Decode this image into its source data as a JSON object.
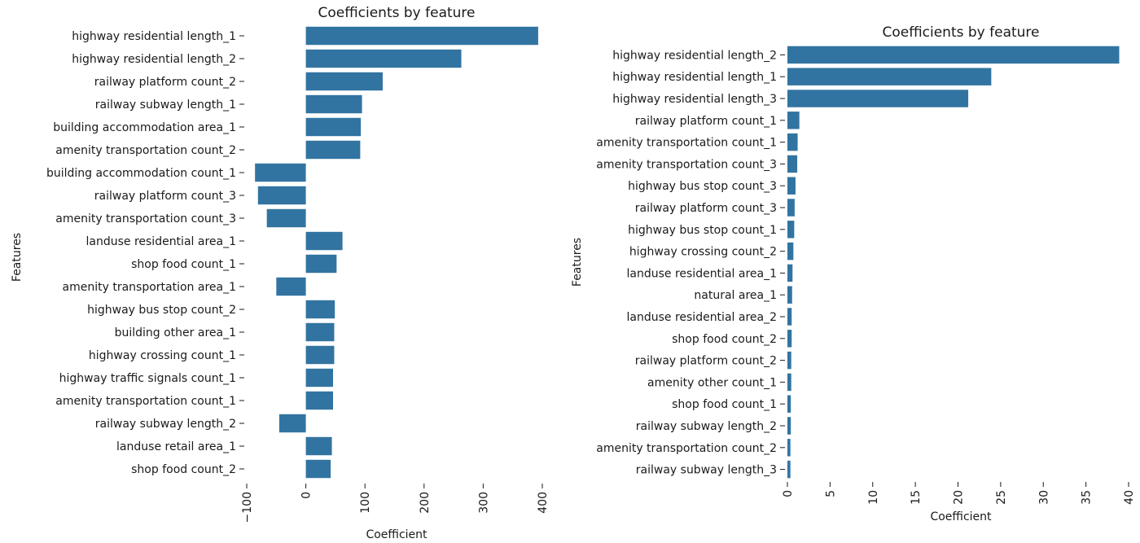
{
  "chart_data": [
    {
      "type": "bar",
      "orientation": "horizontal",
      "title": "Coefficients by feature",
      "xlabel": "Coefficient",
      "ylabel": "Features",
      "xlim": [
        -100,
        400
      ],
      "xticks": [
        -100,
        0,
        100,
        200,
        300,
        400
      ],
      "xtick_labels": [
        "−100",
        "0",
        "100",
        "200",
        "300",
        "400"
      ],
      "bar_color": "#3274a1",
      "grid": false,
      "categories": [
        "highway residential length_1",
        "highway residential length_2",
        "railway platform count_2",
        "railway subway length_1",
        "building accommodation area_1",
        "amenity transportation count_2",
        "building accommodation count_1",
        "railway platform count_3",
        "amenity transportation count_3",
        "landuse residential area_1",
        "shop food count_1",
        "amenity transportation area_1",
        "highway bus stop count_2",
        "building other area_1",
        "highway crossing count_1",
        "highway traffic signals count_1",
        "amenity transportation count_1",
        "railway subway length_2",
        "landuse retail area_1",
        "shop food count_2"
      ],
      "values": [
        393,
        263,
        130,
        95,
        93,
        92,
        -86,
        -81,
        -66,
        62,
        52,
        -50,
        49,
        48,
        48,
        46,
        46,
        -45,
        44,
        42
      ]
    },
    {
      "type": "bar",
      "orientation": "horizontal",
      "title": "Coefficients by feature",
      "xlabel": "Coefficient",
      "ylabel": "Features",
      "xlim": [
        0,
        40
      ],
      "xticks": [
        0,
        5,
        10,
        15,
        20,
        25,
        30,
        35,
        40
      ],
      "xtick_labels": [
        "0",
        "5",
        "10",
        "15",
        "20",
        "25",
        "30",
        "35",
        "40"
      ],
      "bar_color": "#3274a1",
      "grid": false,
      "categories": [
        "highway residential length_2",
        "highway residential length_1",
        "highway residential length_3",
        "railway platform count_1",
        "amenity transportation count_1",
        "amenity transportation count_3",
        "highway bus stop count_3",
        "railway platform count_3",
        "highway bus stop count_1",
        "highway crossing count_2",
        "landuse residential area_1",
        "natural area_1",
        "landuse residential area_2",
        "shop food count_2",
        "railway platform count_2",
        "amenity other count_1",
        "shop food count_1",
        "railway subway length_2",
        "amenity transportation count_2",
        "railway subway length_3"
      ],
      "values": [
        38.9,
        23.9,
        21.2,
        1.4,
        1.2,
        1.15,
        0.95,
        0.85,
        0.8,
        0.7,
        0.6,
        0.55,
        0.5,
        0.5,
        0.45,
        0.45,
        0.4,
        0.4,
        0.35,
        0.35
      ]
    }
  ]
}
